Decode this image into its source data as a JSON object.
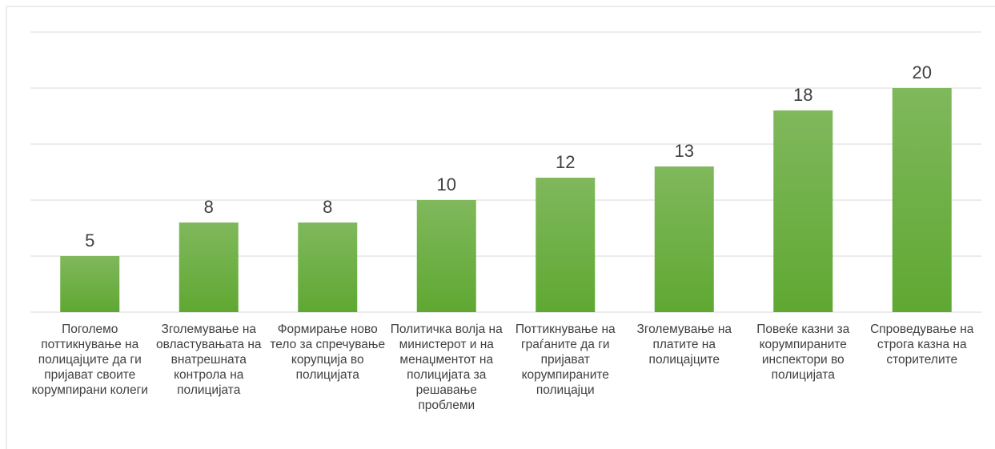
{
  "chart_data": {
    "type": "bar",
    "categories": [
      "Поголемо поттикнување на полицајците да ги пријават своите корумпирани колеги",
      "Зголемување на овластувањата на внатрешната контрола на полицијата",
      "Формирање ново тело за спречување корупција во полицијата",
      "Политичка волја на министерот и на менаџментот на полицијата за решавање проблеми",
      "Поттикнување на граѓаните да ги пријават корумпираните полицајци",
      "Зголемување на платите на полицајците",
      "Повеќе казни за корумпираните инспектори во полицијата",
      "Спроведување на строга казна на сторителите"
    ],
    "values": [
      5,
      8,
      8,
      10,
      12,
      13,
      18,
      20
    ],
    "color": "#70ad47",
    "ylim": [
      0,
      25
    ],
    "yticks": [
      0,
      5,
      10,
      15,
      20,
      25
    ],
    "grid": true
  }
}
